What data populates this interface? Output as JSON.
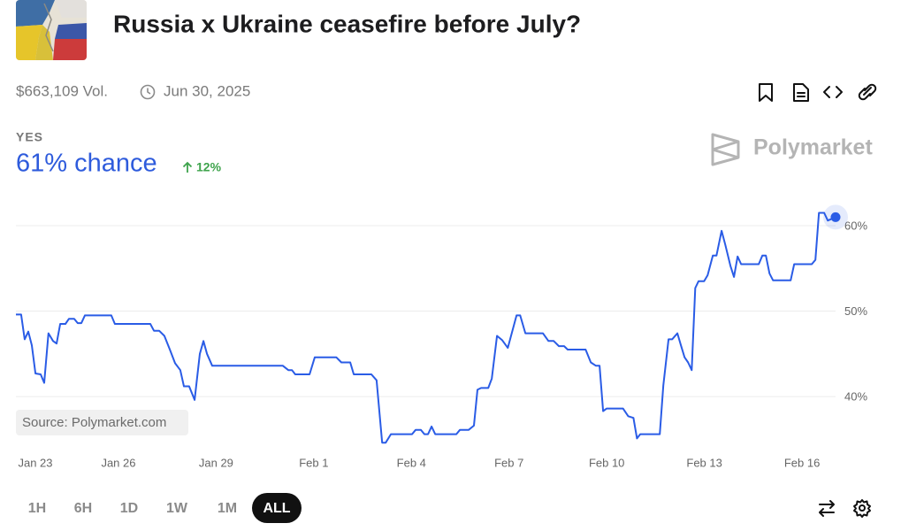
{
  "header": {
    "title": "Russia x Ukraine ceasefire before July?",
    "volume": "$663,109 Vol.",
    "end_date": "Jun 30, 2025"
  },
  "outcome": {
    "label": "YES",
    "chance": "61% chance",
    "change": "12%"
  },
  "brand": "Polymarket",
  "source": "Source: Polymarket.com",
  "ranges": [
    "1H",
    "6H",
    "1D",
    "1W",
    "1M",
    "ALL"
  ],
  "chart_data": {
    "type": "line",
    "x": [
      22.85,
      23.01,
      23.12,
      23.23,
      23.34,
      23.45,
      23.61,
      23.72,
      23.85,
      23.99,
      24.1,
      24.21,
      24.37,
      24.48,
      24.64,
      24.75,
      24.86,
      24.97,
      25.78,
      25.89,
      26.98,
      27.09,
      27.25,
      27.41,
      27.58,
      27.74,
      27.9,
      28.01,
      28.17,
      28.34,
      28.5,
      28.61,
      28.72,
      28.88,
      31.05,
      31.22,
      31.33,
      31.43,
      31.87,
      32.03,
      32.69,
      32.85,
      33.12,
      33.23,
      33.77,
      33.93,
      34.1,
      34.21,
      34.37,
      35.02,
      35.13,
      35.29,
      35.4,
      35.51,
      35.62,
      35.73,
      36.38,
      36.49,
      36.76,
      36.92,
      37.03,
      37.14,
      37.36,
      37.47,
      37.63,
      37.79,
      37.96,
      38.23,
      38.34,
      38.5,
      39.04,
      39.21,
      39.37,
      39.53,
      39.69,
      39.8,
      40.35,
      40.51,
      40.67,
      40.78,
      40.89,
      41.0,
      41.5,
      41.66,
      41.82,
      41.93,
      42.03,
      42.63,
      42.74,
      42.9,
      43.01,
      43.17,
      43.28,
      43.39,
      43.5,
      43.61,
      43.72,
      43.82,
      43.99,
      44.1,
      44.26,
      44.37,
      44.53,
      44.64,
      44.8,
      44.91,
      45.02,
      45.13,
      45.67,
      45.78,
      45.89,
      46.0,
      46.11,
      46.65,
      46.76,
      47.3,
      47.41,
      47.52,
      47.68,
      47.79,
      48.03
    ],
    "series": [
      {
        "name": "YES",
        "color": "#2a5ce6",
        "values": [
          49.6,
          49.6,
          46.7,
          47.6,
          46.0,
          42.7,
          42.6,
          41.6,
          47.4,
          46.5,
          46.2,
          48.5,
          48.5,
          49.1,
          49.1,
          48.6,
          48.6,
          49.5,
          49.5,
          48.5,
          48.5,
          47.7,
          47.7,
          47.1,
          45.5,
          43.9,
          43.1,
          41.2,
          41.2,
          39.6,
          45.0,
          46.5,
          45.0,
          43.6,
          43.6,
          43.1,
          43.1,
          42.6,
          42.6,
          44.6,
          44.6,
          44.0,
          44.0,
          42.6,
          42.6,
          41.9,
          34.6,
          34.6,
          35.6,
          35.6,
          36.1,
          36.1,
          35.6,
          35.6,
          36.5,
          35.6,
          35.6,
          36.1,
          36.1,
          36.6,
          40.8,
          41.0,
          41.0,
          42.1,
          47.1,
          46.6,
          45.7,
          49.5,
          49.5,
          47.4,
          47.4,
          46.5,
          46.5,
          45.9,
          45.9,
          45.5,
          45.5,
          44.0,
          43.6,
          43.6,
          38.3,
          38.6,
          38.6,
          37.7,
          37.5,
          35.1,
          35.6,
          35.6,
          41.3,
          46.7,
          46.7,
          47.4,
          46.0,
          44.6,
          44.0,
          43.1,
          52.7,
          53.5,
          53.5,
          54.2,
          56.5,
          56.5,
          59.4,
          57.8,
          55.3,
          54.0,
          56.4,
          55.5,
          55.5,
          56.5,
          56.5,
          54.4,
          53.6,
          53.6,
          55.5,
          55.5,
          56.0,
          61.5,
          61.5,
          60.6,
          61.0
        ]
      }
    ],
    "xlim": [
      22.85,
      48.03
    ],
    "xticks": [
      {
        "value": 23,
        "label": "Jan 23"
      },
      {
        "value": 26,
        "label": "Jan 26"
      },
      {
        "value": 29,
        "label": "Jan 29"
      },
      {
        "value": 32,
        "label": "Feb 1"
      },
      {
        "value": 35,
        "label": "Feb 4"
      },
      {
        "value": 38,
        "label": "Feb 7"
      },
      {
        "value": 41,
        "label": "Feb 10"
      },
      {
        "value": 44,
        "label": "Feb 13"
      },
      {
        "value": 47,
        "label": "Feb 16"
      }
    ],
    "ylim": [
      34,
      64
    ],
    "yticks": [
      {
        "value": 40,
        "label": "40%"
      },
      {
        "value": 50,
        "label": "50%"
      },
      {
        "value": 60,
        "label": "60%"
      }
    ],
    "grid": true
  }
}
